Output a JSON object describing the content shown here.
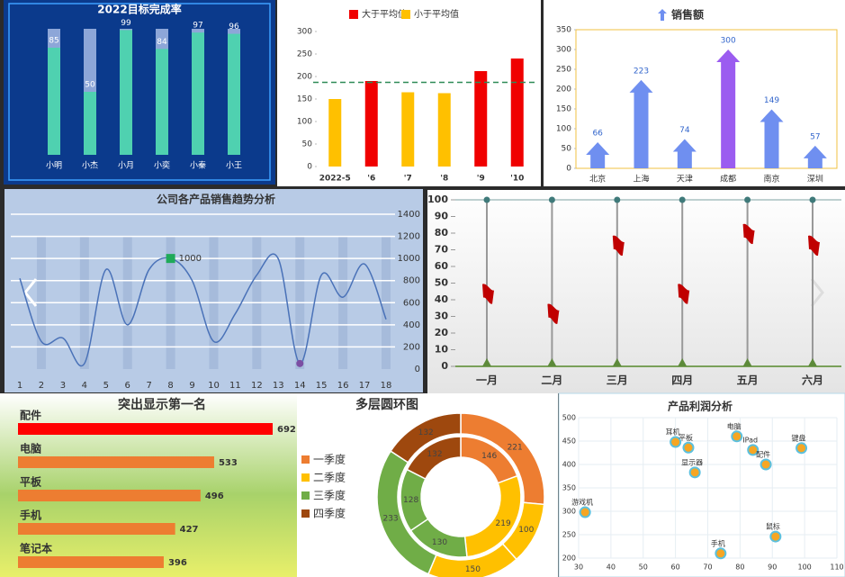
{
  "chart_data": [
    {
      "type": "bar",
      "title": "2022目标完成率",
      "categories": [
        "小明",
        "小杰",
        "小月",
        "小奕",
        "小秦",
        "小王"
      ],
      "values": [
        85,
        50,
        99,
        84,
        97,
        96
      ],
      "ylim": [
        0,
        100
      ],
      "color": "#4fd1b0",
      "track_color": "#8da6d8"
    },
    {
      "type": "bar",
      "categories": [
        "2022-5",
        "'6",
        "'7",
        "'8",
        "'9",
        "'10"
      ],
      "series": [
        {
          "name": "大于平均值",
          "color": "#f00000",
          "values": [
            null,
            190,
            null,
            null,
            212,
            240
          ]
        },
        {
          "name": "小于平均值",
          "color": "#ffc000",
          "values": [
            150,
            null,
            165,
            163,
            null,
            null
          ]
        }
      ],
      "ylim": [
        0,
        300
      ],
      "yticks": [
        0,
        50,
        100,
        150,
        200,
        250,
        300
      ],
      "reference_line": 187,
      "reference_color": "#2e8b57"
    },
    {
      "type": "bar",
      "marker": "arrow",
      "categories": [
        "北京",
        "上海",
        "天津",
        "成都",
        "南京",
        "深圳"
      ],
      "series": [
        {
          "name": "销售额",
          "color": "#6f8ff0",
          "values": [
            66,
            223,
            74,
            300,
            149,
            57
          ]
        }
      ],
      "highlight_color": "#9b5cf0",
      "ylim": [
        0,
        350
      ],
      "yticks": [
        0,
        50,
        100,
        150,
        200,
        250,
        300,
        350
      ]
    },
    {
      "type": "line",
      "title": "公司各产品销售趋势分析",
      "x": [
        1,
        2,
        3,
        4,
        5,
        6,
        7,
        8,
        9,
        10,
        11,
        12,
        13,
        14,
        15,
        16,
        17,
        18
      ],
      "values": [
        820,
        250,
        280,
        50,
        900,
        400,
        900,
        1000,
        800,
        250,
        500,
        850,
        996,
        50,
        850,
        650,
        950,
        450
      ],
      "xlim": [
        1,
        18
      ],
      "ylim": [
        0,
        1400
      ],
      "yticks": [
        0,
        200,
        400,
        600,
        800,
        1000,
        1200,
        1400
      ],
      "color": "#4a72b8",
      "grid": true,
      "max_color": "#1faa59",
      "min_color": "#7b4ea3"
    },
    {
      "type": "flag",
      "categories": [
        "一月",
        "二月",
        "三月",
        "四月",
        "五月",
        "六月"
      ],
      "values": [
        44,
        32,
        73,
        44,
        80,
        73
      ],
      "ylim": [
        0,
        100
      ],
      "yticks": [
        0,
        10,
        20,
        30,
        40,
        50,
        60,
        70,
        80,
        90,
        100
      ],
      "color": "#c00000"
    },
    {
      "type": "bar",
      "orientation": "horizontal",
      "title": "突出显示第一名",
      "categories": [
        "配件",
        "电脑",
        "平板",
        "手机",
        "笔记本"
      ],
      "values": [
        692,
        533,
        496,
        427,
        396
      ],
      "color": "#ed7d31",
      "highlight_color": "#ff0000"
    },
    {
      "type": "donut",
      "title": "多层圆环图",
      "legend": [
        "一季度",
        "二季度",
        "三季度",
        "四季度"
      ],
      "colors": [
        "#ed7d31",
        "#ffc000",
        "#70ad47",
        "#9e480e"
      ],
      "rings": [
        {
          "values": [
            221,
            100,
            150,
            233,
            132
          ],
          "groups": [
            0,
            1,
            1,
            2,
            3
          ]
        },
        {
          "values": [
            146,
            219,
            130,
            128,
            132
          ],
          "groups": [
            0,
            1,
            2,
            2,
            3
          ]
        }
      ]
    },
    {
      "type": "scatter",
      "title": "产品利润分析",
      "points": [
        {
          "label": "游戏机",
          "x": 32,
          "y": 298
        },
        {
          "label": "耳机",
          "x": 60,
          "y": 448
        },
        {
          "label": "平板",
          "x": 64,
          "y": 436
        },
        {
          "label": "显示器",
          "x": 66,
          "y": 383
        },
        {
          "label": "电脑",
          "x": 79,
          "y": 460
        },
        {
          "label": "IPad",
          "x": 84,
          "y": 431
        },
        {
          "label": "配件",
          "x": 88,
          "y": 400
        },
        {
          "label": "键盘",
          "x": 99,
          "y": 435
        },
        {
          "label": "手机",
          "x": 74,
          "y": 210
        },
        {
          "label": "鼠标",
          "x": 91,
          "y": 246
        }
      ],
      "xlim": [
        30,
        110
      ],
      "xticks": [
        30,
        40,
        50,
        60,
        70,
        80,
        90,
        100,
        110
      ],
      "ylim": [
        200,
        500
      ],
      "yticks": [
        200,
        250,
        300,
        350,
        400,
        450,
        500
      ],
      "color": "#f6a623",
      "edge_color": "#5bc0de",
      "grid": true
    }
  ]
}
